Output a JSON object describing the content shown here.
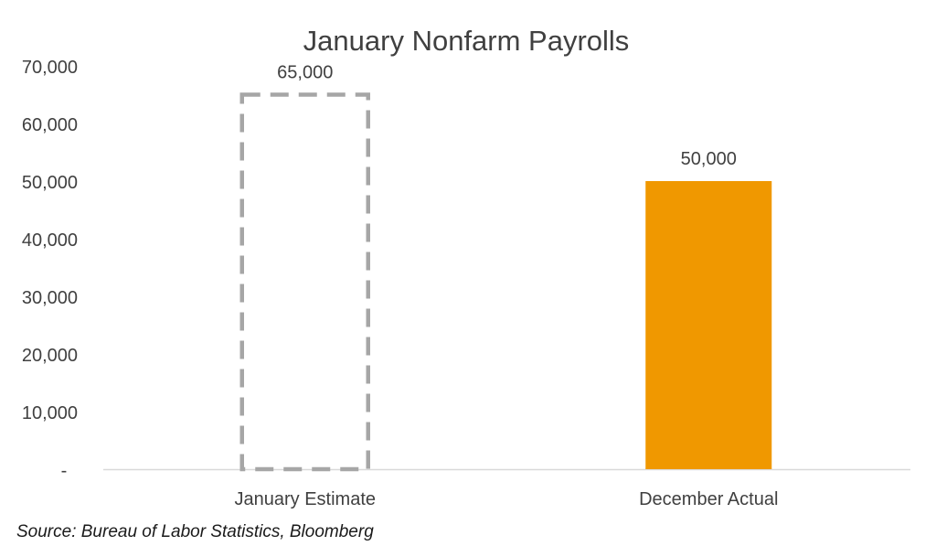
{
  "chart_data": {
    "type": "bar",
    "title": "January Nonfarm Payrolls",
    "categories": [
      "January Estimate",
      "December Actual"
    ],
    "values": [
      65000,
      50000
    ],
    "data_labels": [
      "65,000",
      "50,000"
    ],
    "bar_styles": [
      "dashed-outline",
      "solid"
    ],
    "colors": {
      "estimate_outline": "#a6a6a6",
      "actual_fill": "#f09800",
      "axis_line": "#d9d9d9",
      "text": "#404040"
    },
    "ylim": [
      0,
      70000
    ],
    "yticks": [
      "-",
      "10,000",
      "20,000",
      "30,000",
      "40,000",
      "50,000",
      "60,000",
      "70,000"
    ],
    "xlabel": "",
    "ylabel": "",
    "grid": false,
    "legend": "none"
  },
  "footer": {
    "source": "Source: Bureau of Labor Statistics, Bloomberg"
  }
}
